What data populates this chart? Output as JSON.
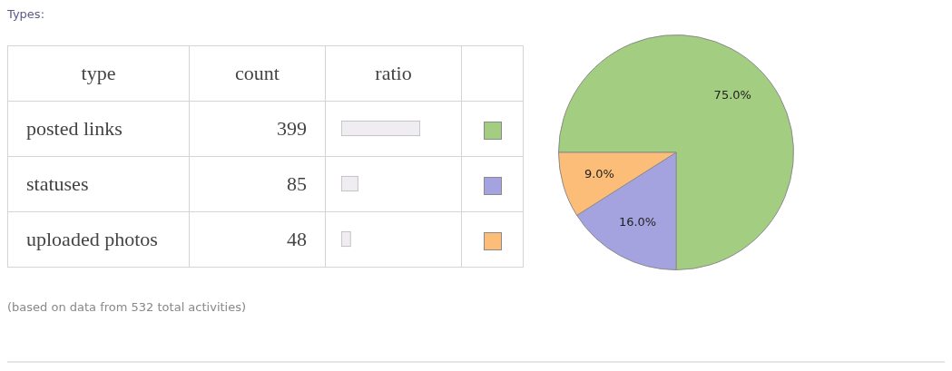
{
  "chart_data": [
    {
      "type": "bar",
      "orientation": "horizontal",
      "title": "Types:",
      "categories": [
        "posted links",
        "statuses",
        "uploaded photos"
      ],
      "values": [
        399,
        85,
        48
      ],
      "color": "#efedf1",
      "data_labels": true,
      "annotations": [
        "type",
        "count",
        "ratio",
        "(based on data from 532 total activities)"
      ]
    },
    {
      "type": "pie",
      "categories": [
        null,
        null,
        null
      ],
      "values": [
        75.0,
        16.0,
        9.0
      ],
      "colors": [
        "#a3cd80",
        "#a4a3e0",
        "#fcbd78"
      ],
      "value_labels": [
        "75.0%",
        "16.0%",
        "9.0%"
      ]
    }
  ]
}
